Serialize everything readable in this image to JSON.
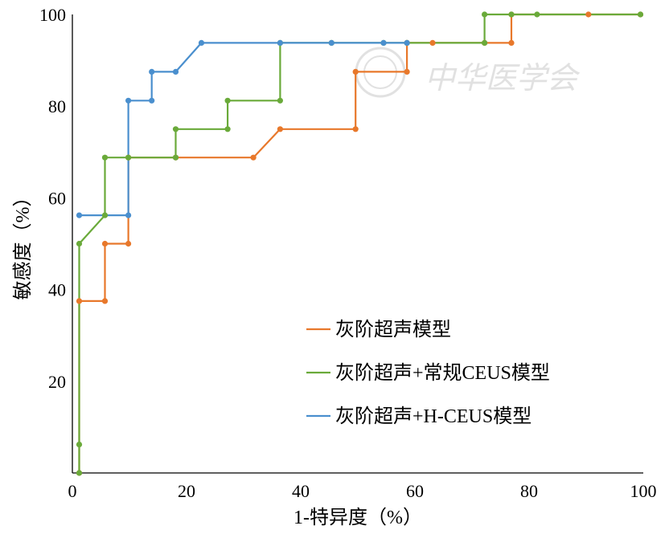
{
  "chart_data": {
    "type": "line",
    "step": true,
    "title": "",
    "xlabel": "1-特异度（%）",
    "ylabel": "敏感度（%）",
    "xlim": [
      0,
      100
    ],
    "ylim": [
      0,
      100
    ],
    "x_ticks": [
      "0",
      "20",
      "40",
      "60",
      "80",
      "100"
    ],
    "y_ticks": [
      "20",
      "40",
      "60",
      "80",
      "100"
    ],
    "x_tick_values": [
      0,
      20,
      40,
      60,
      80,
      100
    ],
    "y_tick_values": [
      20,
      40,
      60,
      80,
      100
    ],
    "grid": false,
    "legend_position": "bottom-right",
    "watermark": "中华医学会",
    "series": [
      {
        "name": "灰阶超声模型",
        "color": "#e8782b",
        "points": [
          [
            1.2,
            0
          ],
          [
            1.2,
            37.5
          ],
          [
            5.7,
            37.5
          ],
          [
            5.7,
            50
          ],
          [
            9.8,
            50
          ],
          [
            9.8,
            68.8
          ],
          [
            18.1,
            68.8
          ],
          [
            31.7,
            68.8
          ],
          [
            36.4,
            75
          ],
          [
            49.6,
            75
          ],
          [
            49.6,
            87.5
          ],
          [
            58.6,
            87.5
          ],
          [
            58.6,
            93.8
          ],
          [
            63.1,
            93.8
          ],
          [
            72.2,
            93.8
          ],
          [
            76.9,
            93.8
          ],
          [
            76.9,
            100
          ],
          [
            90.4,
            100
          ],
          [
            99.5,
            100
          ]
        ]
      },
      {
        "name": "灰阶超声+常规CEUS模型",
        "color": "#6aaa3a",
        "points": [
          [
            1.2,
            0
          ],
          [
            1.2,
            6.2
          ],
          [
            1.2,
            50
          ],
          [
            5.7,
            56.2
          ],
          [
            5.7,
            68.8
          ],
          [
            9.8,
            68.8
          ],
          [
            18.1,
            68.8
          ],
          [
            18.1,
            75
          ],
          [
            27.2,
            75
          ],
          [
            27.2,
            81.2
          ],
          [
            36.4,
            81.2
          ],
          [
            36.4,
            93.8
          ],
          [
            45.4,
            93.8
          ],
          [
            54.5,
            93.8
          ],
          [
            58.6,
            93.8
          ],
          [
            72.2,
            93.8
          ],
          [
            72.2,
            100
          ],
          [
            76.9,
            100
          ],
          [
            81.4,
            100
          ],
          [
            99.5,
            100
          ]
        ]
      },
      {
        "name": "灰阶超声+H-CEUS模型",
        "color": "#4a8fce",
        "points": [
          [
            1.2,
            56.2
          ],
          [
            9.8,
            56.2
          ],
          [
            9.8,
            81.2
          ],
          [
            13.9,
            81.2
          ],
          [
            13.9,
            87.5
          ],
          [
            18.1,
            87.5
          ],
          [
            22.6,
            93.8
          ],
          [
            36.4,
            93.8
          ],
          [
            45.4,
            93.8
          ],
          [
            54.5,
            93.8
          ],
          [
            58.6,
            93.8
          ]
        ]
      }
    ]
  }
}
